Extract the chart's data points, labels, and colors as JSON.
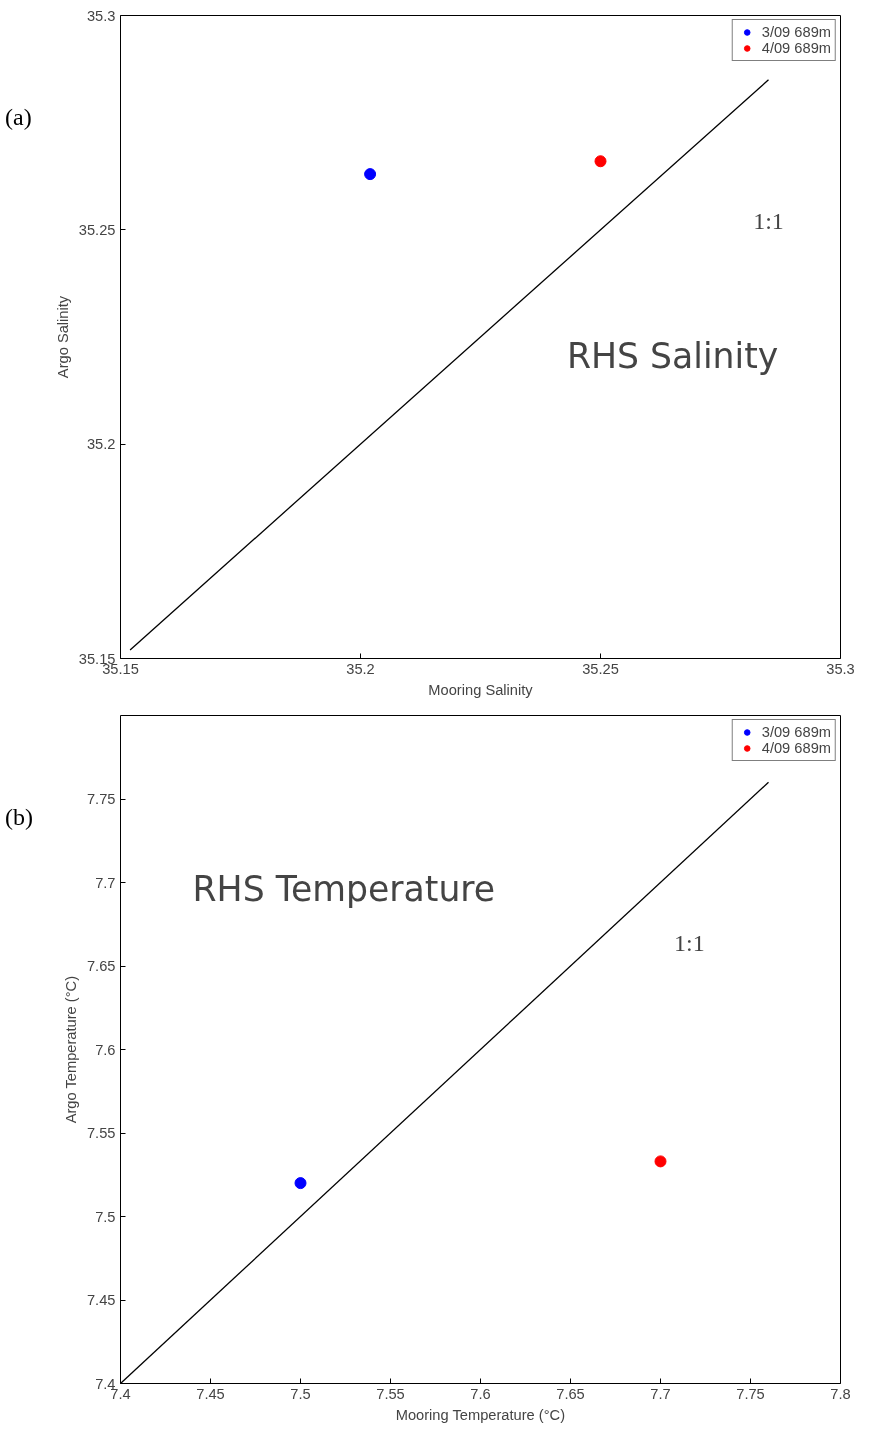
{
  "chart_data": [
    {
      "type": "scatter",
      "xlabel": "Mooring Salinity",
      "ylabel": "Argo Salinity",
      "xlim": [
        35.15,
        35.3
      ],
      "ylim": [
        35.15,
        35.3
      ],
      "xticks": [
        35.15,
        35.2,
        35.25,
        35.3
      ],
      "yticks": [
        35.15,
        35.2,
        35.25,
        35.3
      ],
      "grid": false,
      "legend": "top right",
      "marker": "circle",
      "annotations": [
        "(a)",
        "RHS Salinity",
        "1:1"
      ],
      "series": [
        {
          "name": "3/09 689m",
          "color": "#0000ff",
          "x": [
            35.202
          ],
          "values": [
            35.263
          ]
        },
        {
          "name": "4/09 689m",
          "color": "#ff0000",
          "x": [
            35.25
          ],
          "values": [
            35.266
          ]
        },
        {
          "type": "line",
          "marker": "none",
          "color": "#000000",
          "x": [
            35.152,
            35.285
          ],
          "values": [
            35.152,
            35.285
          ]
        }
      ]
    },
    {
      "type": "scatter",
      "xlabel": "Mooring Temperature (°C)",
      "ylabel": "Argo Temperature (°C)",
      "xlim": [
        7.4,
        7.8
      ],
      "ylim": [
        7.4,
        7.8
      ],
      "xticks": [
        7.4,
        7.45,
        7.5,
        7.55,
        7.6,
        7.65,
        7.7,
        7.75,
        7.8
      ],
      "yticks": [
        7.4,
        7.45,
        7.5,
        7.55,
        7.6,
        7.65,
        7.7,
        7.75
      ],
      "grid": false,
      "legend": "top right",
      "marker": "circle",
      "annotations": [
        "(b)",
        "RHS Temperature",
        "1:1"
      ],
      "series": [
        {
          "name": "3/09 689m",
          "color": "#0000ff",
          "x": [
            7.5
          ],
          "values": [
            7.52
          ]
        },
        {
          "name": "4/09 689m",
          "color": "#ff0000",
          "x": [
            7.7
          ],
          "values": [
            7.533
          ]
        },
        {
          "type": "line",
          "marker": "none",
          "color": "#000000",
          "x": [
            7.4,
            7.76
          ],
          "values": [
            7.4,
            7.76
          ]
        }
      ]
    }
  ]
}
